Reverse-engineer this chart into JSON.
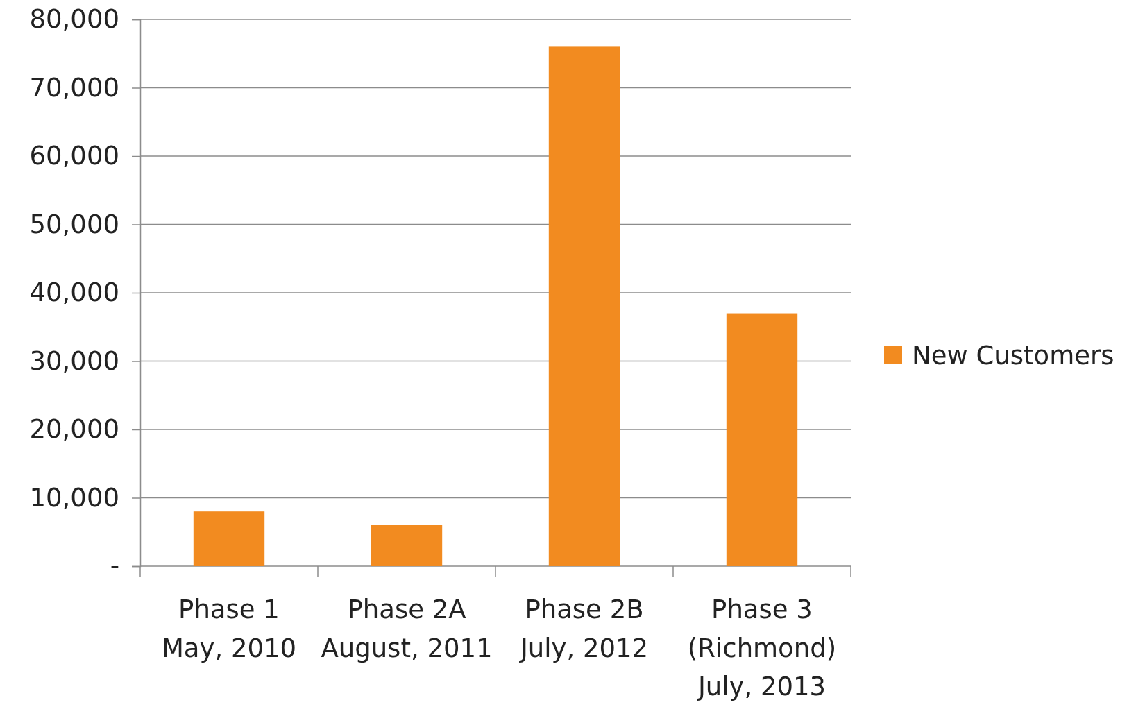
{
  "chart_data": {
    "type": "bar",
    "categories": [
      "Phase 1\nMay, 2010",
      "Phase 2A\nAugust, 2011",
      "Phase 2B\nJuly, 2012",
      "Phase 3\n(Richmond)\nJuly, 2013"
    ],
    "series": [
      {
        "name": "New Customers",
        "color": "#f28b20",
        "values": [
          8000,
          6000,
          76000,
          37000
        ]
      }
    ],
    "ylim": [
      0,
      80000
    ],
    "yticks": [
      {
        "value": 0,
        "label": "-"
      },
      {
        "value": 10000,
        "label": "10,000"
      },
      {
        "value": 20000,
        "label": "20,000"
      },
      {
        "value": 30000,
        "label": "30,000"
      },
      {
        "value": 40000,
        "label": "40,000"
      },
      {
        "value": 50000,
        "label": "50,000"
      },
      {
        "value": 60000,
        "label": "60,000"
      },
      {
        "value": 70000,
        "label": "70,000"
      },
      {
        "value": 80000,
        "label": "80,000"
      }
    ],
    "grid": "y",
    "legend": "right"
  }
}
